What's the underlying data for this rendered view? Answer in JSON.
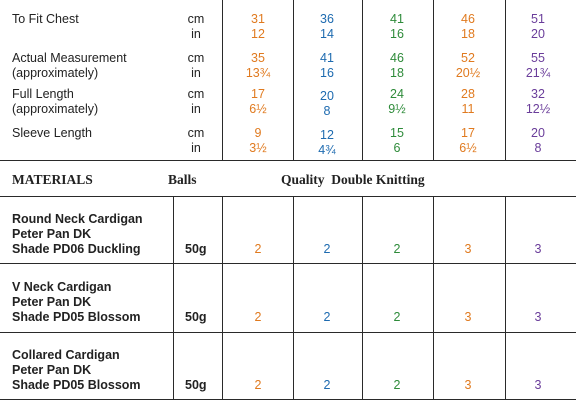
{
  "measurements": [
    {
      "label": [
        "To Fit Chest"
      ],
      "units": [
        "cm",
        "in"
      ],
      "values": [
        [
          "31",
          "12"
        ],
        [
          "36",
          "14"
        ],
        [
          "41",
          "16"
        ],
        [
          "46",
          "18"
        ],
        [
          "51",
          "20"
        ]
      ]
    },
    {
      "label": [
        "Actual Measurement",
        "(approximately)"
      ],
      "units": [
        "cm",
        "in"
      ],
      "values": [
        [
          "35",
          "13¾"
        ],
        [
          "41",
          "16"
        ],
        [
          "46",
          "18"
        ],
        [
          "52",
          "20½"
        ],
        [
          "55",
          "21¾"
        ]
      ]
    },
    {
      "label": [
        "Full Length",
        "(approximately)"
      ],
      "units": [
        "cm",
        "in"
      ],
      "values": [
        [
          "17",
          "6½"
        ],
        [
          "20",
          "8"
        ],
        [
          "24",
          "9½"
        ],
        [
          "28",
          "11"
        ],
        [
          "32",
          "12½"
        ]
      ]
    },
    {
      "label": [
        "Sleeve Length"
      ],
      "units": [
        "cm",
        "in"
      ],
      "values": [
        [
          "9",
          "3½"
        ],
        [
          "12",
          "4¾"
        ],
        [
          "15",
          "6"
        ],
        [
          "17",
          "6½"
        ],
        [
          "20",
          "8"
        ]
      ]
    }
  ],
  "materials_header": {
    "materials": "MATERIALS",
    "balls": "Balls",
    "quality": "Quality  Double Knitting"
  },
  "materials": [
    {
      "name": [
        "Round Neck Cardigan",
        "Peter Pan DK",
        "Shade PD06 Duckling"
      ],
      "weight": "50g",
      "balls": [
        "2",
        "2",
        "2",
        "3",
        "3"
      ]
    },
    {
      "name": [
        "V Neck Cardigan",
        "Peter Pan DK",
        "Shade PD05 Blossom"
      ],
      "weight": "50g",
      "balls": [
        "2",
        "2",
        "2",
        "3",
        "3"
      ]
    },
    {
      "name": [
        "Collared Cardigan",
        "Peter Pan DK",
        "Shade PD05 Blossom"
      ],
      "weight": "50g",
      "balls": [
        "2",
        "2",
        "2",
        "3",
        "3"
      ]
    }
  ],
  "size_colors": [
    "#e07a1f",
    "#1e6bb0",
    "#2e8b3a",
    "#e07a1f",
    "#6a3d9a"
  ]
}
